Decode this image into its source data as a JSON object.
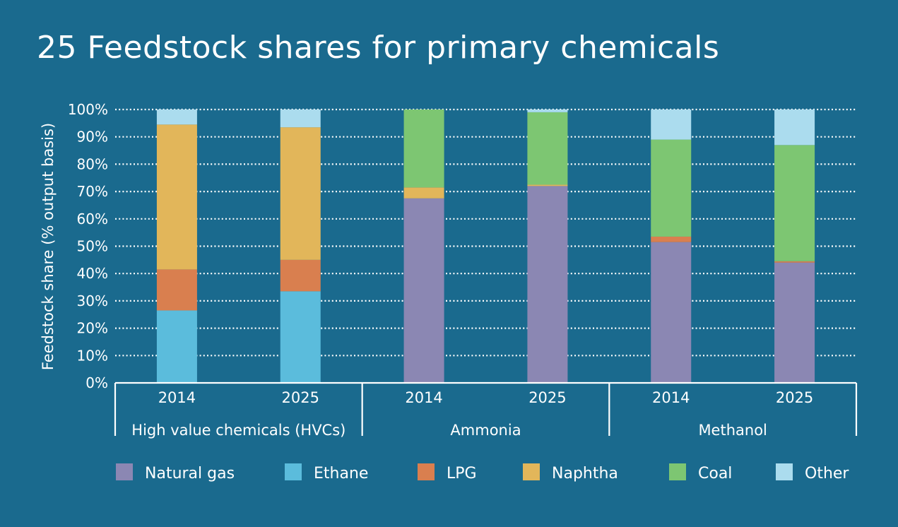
{
  "chart_data": {
    "type": "bar",
    "stacked": true,
    "title": "25 Feedstock shares for primary chemicals",
    "ylabel": "Feedstock share (% output basis)",
    "ylim": [
      0,
      100
    ],
    "y_ticks": [
      "0%",
      "10%",
      "20%",
      "30%",
      "40%",
      "50%",
      "60%",
      "70%",
      "80%",
      "90%",
      "100%"
    ],
    "grid": true,
    "legend_position": "bottom",
    "groups": [
      {
        "label": "High value chemicals (HVCs)",
        "categories": [
          "2014",
          "2025"
        ]
      },
      {
        "label": "Ammonia",
        "categories": [
          "2014",
          "2025"
        ]
      },
      {
        "label": "Methanol",
        "categories": [
          "2014",
          "2025"
        ]
      }
    ],
    "categories": [
      "2014",
      "2025",
      "2014",
      "2025",
      "2014",
      "2025"
    ],
    "series": [
      {
        "name": "Natural gas",
        "color": "#8b87b3",
        "values": [
          0,
          0,
          67.5,
          72,
          51.5,
          44
        ]
      },
      {
        "name": "Ethane",
        "color": "#5bbcdc",
        "values": [
          26.5,
          33.5,
          0,
          0,
          0,
          0
        ]
      },
      {
        "name": "LPG",
        "color": "#d97f4f",
        "values": [
          15,
          11.5,
          0,
          0,
          2,
          0.5
        ]
      },
      {
        "name": "Naphtha",
        "color": "#e2b65a",
        "values": [
          53,
          48.5,
          4,
          0.5,
          0,
          0
        ]
      },
      {
        "name": "Coal",
        "color": "#7dc672",
        "values": [
          0,
          0,
          28.5,
          26.5,
          35.5,
          42.5
        ]
      },
      {
        "name": "Other",
        "color": "#abdcee",
        "values": [
          5.5,
          6.5,
          0,
          1,
          11,
          13
        ]
      }
    ]
  }
}
